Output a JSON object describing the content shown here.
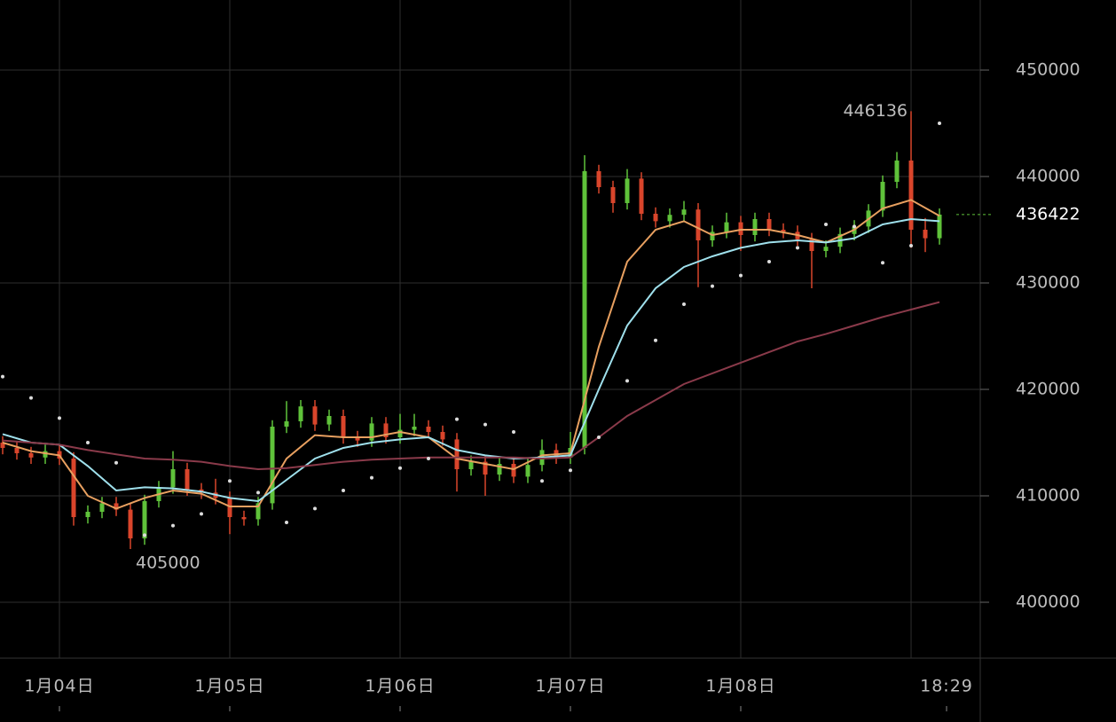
{
  "chart_data": {
    "type": "candlestick",
    "xlim": [
      -8.375,
      129.75
    ],
    "ylim": [
      394750,
      456583
    ],
    "xticks": [
      {
        "value": 0,
        "label": "1月04日"
      },
      {
        "value": 24,
        "label": "1月05日"
      },
      {
        "value": 48,
        "label": "1月06日"
      },
      {
        "value": 72,
        "label": "1月07日"
      },
      {
        "value": 96,
        "label": "1月08日"
      },
      {
        "value": 125,
        "label": "18:29"
      }
    ],
    "xgrid": [
      0,
      24,
      48,
      72,
      96,
      120
    ],
    "yticks": [
      400000,
      410000,
      420000,
      430000,
      440000,
      450000
    ],
    "grid": true,
    "up_color": "#5fc23a",
    "down_color": "#d9452b",
    "x": [
      -8,
      -6,
      -4,
      -2,
      0,
      2,
      4,
      6,
      8,
      10,
      12,
      14,
      16,
      18,
      20,
      22,
      24,
      26,
      28,
      30,
      32,
      34,
      36,
      38,
      40,
      42,
      44,
      46,
      48,
      50,
      52,
      54,
      56,
      58,
      60,
      62,
      64,
      66,
      68,
      70,
      72,
      74,
      76,
      78,
      80,
      82,
      84,
      86,
      88,
      90,
      92,
      94,
      96,
      98,
      100,
      102,
      104,
      106,
      108,
      110,
      112,
      114,
      116,
      118,
      120,
      122,
      124
    ],
    "open": [
      415000,
      414500,
      414000,
      413600,
      414200,
      413500,
      408000,
      408500,
      409300,
      408700,
      406000,
      409500,
      410800,
      412500,
      410600,
      410300,
      409800,
      408000,
      407800,
      409300,
      416500,
      417000,
      418400,
      416700,
      417500,
      415500,
      415200,
      416800,
      415500,
      416200,
      416500,
      416000,
      415300,
      412500,
      413200,
      412000,
      413000,
      411800,
      412900,
      414300,
      413600,
      414500,
      440500,
      439000,
      437500,
      439800,
      436500,
      435800,
      436400,
      436900,
      434000,
      434800,
      435700,
      434500,
      436000,
      435000,
      434800,
      434100,
      433000,
      433400,
      434600,
      435300,
      436800,
      439500,
      441500,
      435000,
      434200
    ],
    "high": [
      415600,
      415100,
      414600,
      414800,
      414800,
      414100,
      409100,
      409900,
      409900,
      409300,
      410100,
      411400,
      414200,
      413100,
      411200,
      411600,
      410400,
      408600,
      409900,
      417100,
      418900,
      419000,
      419000,
      418100,
      418100,
      416100,
      417400,
      417400,
      417700,
      417700,
      417100,
      416600,
      415900,
      413800,
      413800,
      413600,
      413600,
      413500,
      415300,
      414900,
      416000,
      442000,
      441100,
      439600,
      440700,
      440400,
      437100,
      437000,
      437700,
      437500,
      435400,
      436600,
      436300,
      436600,
      436600,
      435600,
      435400,
      434700,
      434000,
      435200,
      435900,
      437400,
      440100,
      442300,
      446136,
      436100,
      437000
    ],
    "low": [
      413900,
      413400,
      413000,
      413000,
      412900,
      407200,
      407400,
      407900,
      408100,
      405000,
      405400,
      408900,
      410200,
      410000,
      409700,
      409200,
      406400,
      407200,
      407200,
      408700,
      415900,
      416400,
      416100,
      416100,
      414900,
      414600,
      414600,
      414900,
      414900,
      415600,
      415400,
      414700,
      410400,
      411900,
      410000,
      411400,
      411200,
      411200,
      412300,
      413000,
      413000,
      413900,
      438400,
      436600,
      436900,
      435900,
      435200,
      435200,
      435800,
      429600,
      433400,
      434200,
      433000,
      433900,
      434400,
      434200,
      433500,
      429500,
      432400,
      432800,
      434000,
      434700,
      436200,
      438900,
      433300,
      432900,
      433600
    ],
    "close": [
      414500,
      414000,
      413600,
      414200,
      413500,
      408000,
      408500,
      409300,
      408700,
      406000,
      409500,
      410800,
      412500,
      410600,
      410300,
      409800,
      408000,
      407800,
      409300,
      416500,
      417000,
      418400,
      416700,
      417500,
      415500,
      415200,
      416800,
      415500,
      416200,
      416500,
      416000,
      415300,
      412500,
      413200,
      412000,
      413000,
      411800,
      412900,
      414300,
      413600,
      414500,
      440500,
      439000,
      437500,
      439800,
      436500,
      435800,
      436400,
      436900,
      434000,
      434800,
      435700,
      434500,
      436000,
      435000,
      434800,
      434100,
      433000,
      433400,
      434600,
      435300,
      436800,
      439500,
      441500,
      435000,
      434200,
      436422
    ],
    "line_x": [
      -8,
      -4,
      0,
      4,
      8,
      12,
      16,
      20,
      24,
      28,
      32,
      36,
      40,
      44,
      48,
      52,
      56,
      60,
      64,
      68,
      72,
      76,
      80,
      84,
      88,
      92,
      96,
      100,
      104,
      108,
      112,
      116,
      120,
      124
    ],
    "lines": [
      {
        "color": "#e8a060",
        "values": [
          415000,
          414200,
          413800,
          410000,
          408800,
          409800,
          410500,
          410200,
          409000,
          409000,
          413500,
          415700,
          415500,
          415500,
          416000,
          415500,
          413500,
          413000,
          412500,
          413800,
          414000,
          424000,
          432000,
          435000,
          435800,
          434500,
          435000,
          435000,
          434500,
          433800,
          435000,
          437000,
          437800,
          436300
        ]
      },
      {
        "color": "#9fe0ec",
        "values": [
          415800,
          415000,
          414800,
          412800,
          410500,
          410800,
          410700,
          410400,
          409800,
          409500,
          411500,
          413500,
          414500,
          415000,
          415300,
          415500,
          414300,
          413800,
          413500,
          413600,
          413800,
          420000,
          426000,
          429500,
          431500,
          432500,
          433300,
          433800,
          434000,
          433800,
          434200,
          435500,
          436000,
          435800
        ]
      },
      {
        "color": "#8a3a4a",
        "values": [
          415200,
          415000,
          414800,
          414300,
          413900,
          413500,
          413400,
          413200,
          412800,
          412500,
          412600,
          412900,
          413200,
          413400,
          413500,
          413600,
          413600,
          413600,
          413600,
          413500,
          413600,
          415500,
          417500,
          419000,
          420500,
          421500,
          422500,
          423500,
          424500,
          425200,
          426000,
          426800,
          427500,
          428200
        ]
      }
    ],
    "sar_color": "#dddddd",
    "sar": [
      421200,
      419200,
      417300,
      415000,
      413100,
      406300,
      407200,
      408300,
      411400,
      410300,
      407500,
      408800,
      410500,
      411700,
      412600,
      413500,
      417200,
      416700,
      416000,
      411400,
      412400,
      415500,
      420800,
      424600,
      428000,
      429700,
      430700,
      432000,
      433300,
      435500,
      435300,
      431900,
      433500,
      445000
    ],
    "max_label": "446136",
    "min_label": "405000",
    "last_price": 436422,
    "last_color": "#5fc23a"
  }
}
